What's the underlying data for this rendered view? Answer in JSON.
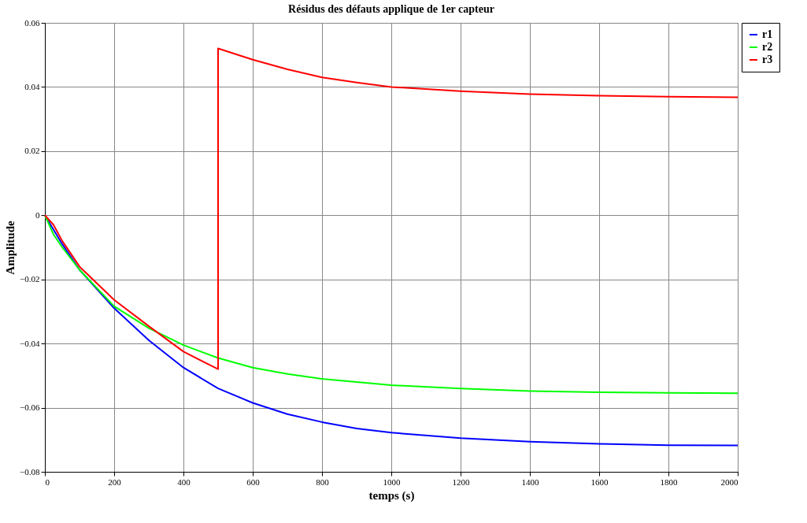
{
  "chart_data": {
    "type": "line",
    "title": "Résidus des défauts  applique de 1er capteur",
    "xlabel": "temps (s)",
    "ylabel": "Amplitude",
    "xlim": [
      0,
      2000
    ],
    "xticks": [
      0,
      200,
      400,
      600,
      800,
      1000,
      1200,
      1400,
      1600,
      1800,
      2000
    ],
    "ylim": [
      -0.08,
      0.06
    ],
    "yticks": [
      -0.08,
      -0.06,
      -0.04,
      -0.02,
      0,
      0.02,
      0.04,
      0.06
    ],
    "grid": true,
    "legend": "right",
    "marker": "none",
    "line_style": "solid",
    "series": [
      {
        "name": "r1",
        "color": "#0000ff",
        "x": [
          0,
          50,
          100,
          200,
          300,
          400,
          500,
          600,
          700,
          800,
          900,
          1000,
          1200,
          1400,
          1600,
          1800,
          2000
        ],
        "values": [
          0,
          -0.009,
          -0.017,
          -0.029,
          -0.039,
          -0.0475,
          -0.054,
          -0.0585,
          -0.062,
          -0.0645,
          -0.0665,
          -0.0678,
          -0.0695,
          -0.0706,
          -0.0713,
          -0.0717,
          -0.0718
        ]
      },
      {
        "name": "r2",
        "color": "#00ff00",
        "x": [
          0,
          25,
          50,
          100,
          200,
          300,
          400,
          500,
          600,
          700,
          800,
          900,
          1000,
          1200,
          1400,
          1600,
          1800,
          2000
        ],
        "values": [
          0,
          -0.006,
          -0.01,
          -0.017,
          -0.0284,
          -0.0352,
          -0.0405,
          -0.0445,
          -0.0475,
          -0.0495,
          -0.051,
          -0.052,
          -0.053,
          -0.054,
          -0.0548,
          -0.0552,
          -0.0554,
          -0.0555
        ]
      },
      {
        "name": "r3",
        "color": "#ff0000",
        "x": [
          0,
          25,
          50,
          100,
          200,
          300,
          400,
          500,
          500,
          600,
          700,
          800,
          900,
          1000,
          1200,
          1400,
          1600,
          1800,
          2000
        ],
        "values": [
          0,
          -0.003,
          -0.008,
          -0.016,
          -0.0264,
          -0.0346,
          -0.0425,
          -0.048,
          0.052,
          0.0485,
          0.0455,
          0.043,
          0.0414,
          0.04,
          0.0387,
          0.0378,
          0.0373,
          0.037,
          0.0368
        ]
      }
    ]
  }
}
